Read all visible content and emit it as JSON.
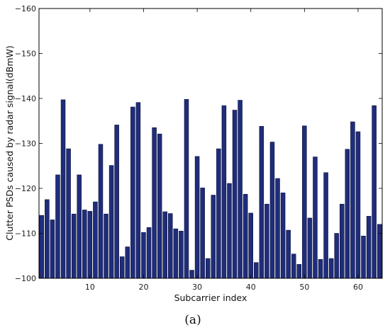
{
  "chart_data": {
    "type": "bar",
    "x": [
      1,
      2,
      3,
      4,
      5,
      6,
      7,
      8,
      9,
      10,
      11,
      12,
      13,
      14,
      15,
      16,
      17,
      18,
      19,
      20,
      21,
      22,
      23,
      24,
      25,
      26,
      27,
      28,
      29,
      30,
      31,
      32,
      33,
      34,
      35,
      36,
      37,
      38,
      39,
      40,
      41,
      42,
      43,
      44,
      45,
      46,
      47,
      48,
      49,
      50,
      51,
      52,
      53,
      54,
      55,
      56,
      57,
      58,
      59,
      60,
      61,
      62,
      63,
      64
    ],
    "values": [
      -114,
      -117.5,
      -113,
      -123,
      -139.7,
      -128.8,
      -114.3,
      -123,
      -115.2,
      -114.9,
      -117,
      -129.8,
      -114.3,
      -125.1,
      -134.1,
      -104.8,
      -107,
      -138.1,
      -139.1,
      -110.2,
      -111.3,
      -133.5,
      -132.1,
      -114.8,
      -114.4,
      -111,
      -110.5,
      -139.8,
      -101.8,
      -127.1,
      -120.1,
      -104.4,
      -118.5,
      -128.8,
      -138.4,
      -121.1,
      -137.4,
      -139.6,
      -118.7,
      -114.5,
      -103.5,
      -133.8,
      -116.5,
      -130.3,
      -122.2,
      -119,
      -110.7,
      -105.4,
      -103.1,
      -133.9,
      -113.4,
      -127,
      -104.2,
      -123.5,
      -104.4,
      -110,
      -116.5,
      -128.7,
      -134.8,
      -132.6,
      -109.4,
      -113.8,
      -138.4,
      -112
    ],
    "xlabel": "Subcarrier index",
    "ylabel": "Clutter PSDs caused by radar signal(dBmW)",
    "x_ticks": [
      10,
      20,
      30,
      40,
      50,
      60
    ],
    "y_ticks": [
      -100,
      -110,
      -120,
      -130,
      -140,
      -150,
      -160
    ],
    "xlim": [
      0.5,
      64.5
    ],
    "ylim": [
      -100,
      -160
    ],
    "grid": false,
    "bar_color": "#1f2d7a",
    "bar_edge_color": "#0a0f3a"
  },
  "caption": "(a)"
}
